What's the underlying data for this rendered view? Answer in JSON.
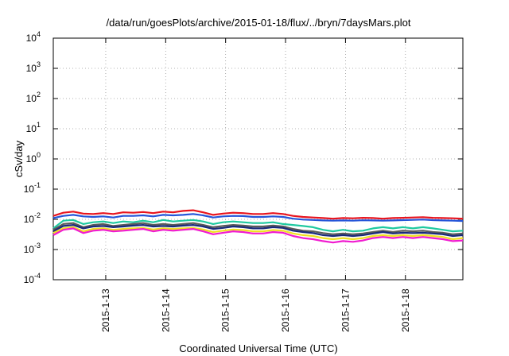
{
  "chart_data": {
    "type": "line",
    "title": "/data/run/goesPlots/archive/2015-01-18/flux/../bryn/7daysMars.plot",
    "xlabel": "Coordinated Universal Time (UTC)",
    "ylabel": "cSv/day",
    "y_scale": "log",
    "ylim": [
      0.0001,
      10000
    ],
    "xlim": [
      "2015-01-12T03:00",
      "2015-01-18T23:00"
    ],
    "x_ticks": [
      "2015-1-13",
      "2015-1-14",
      "2015-1-15",
      "2015-1-16",
      "2015-1-17",
      "2015-1-18"
    ],
    "y_ticks": [
      {
        "base": "10",
        "exp": "-4"
      },
      {
        "base": "10",
        "exp": "-3"
      },
      {
        "base": "10",
        "exp": "-2"
      },
      {
        "base": "10",
        "exp": "-1"
      },
      {
        "base": "10",
        "exp": "0"
      },
      {
        "base": "10",
        "exp": "1"
      },
      {
        "base": "10",
        "exp": "2"
      },
      {
        "base": "10",
        "exp": "3"
      },
      {
        "base": "10",
        "exp": "4"
      }
    ],
    "grid": true,
    "x": [
      "2015-01-12T03:00",
      "2015-01-12T07:00",
      "2015-01-12T11:00",
      "2015-01-12T15:00",
      "2015-01-12T19:00",
      "2015-01-12T23:00",
      "2015-01-13T03:00",
      "2015-01-13T07:00",
      "2015-01-13T11:00",
      "2015-01-13T15:00",
      "2015-01-13T19:00",
      "2015-01-13T23:00",
      "2015-01-14T03:00",
      "2015-01-14T07:00",
      "2015-01-14T11:00",
      "2015-01-14T15:00",
      "2015-01-14T19:00",
      "2015-01-14T23:00",
      "2015-01-15T03:00",
      "2015-01-15T07:00",
      "2015-01-15T11:00",
      "2015-01-15T15:00",
      "2015-01-15T19:00",
      "2015-01-15T23:00",
      "2015-01-16T03:00",
      "2015-01-16T07:00",
      "2015-01-16T11:00",
      "2015-01-16T15:00",
      "2015-01-16T19:00",
      "2015-01-16T23:00",
      "2015-01-17T03:00",
      "2015-01-17T07:00",
      "2015-01-17T11:00",
      "2015-01-17T15:00",
      "2015-01-17T19:00",
      "2015-01-17T23:00",
      "2015-01-18T03:00",
      "2015-01-18T07:00",
      "2015-01-18T11:00",
      "2015-01-18T15:00",
      "2015-01-18T19:00",
      "2015-01-18T23:00"
    ],
    "series": [
      {
        "color": "#e8141e",
        "values": [
          0.013,
          0.0165,
          0.018,
          0.0155,
          0.015,
          0.016,
          0.015,
          0.017,
          0.0165,
          0.0175,
          0.016,
          0.018,
          0.017,
          0.019,
          0.02,
          0.017,
          0.014,
          0.0155,
          0.0165,
          0.016,
          0.015,
          0.015,
          0.016,
          0.015,
          0.013,
          0.012,
          0.0115,
          0.011,
          0.0105,
          0.011,
          0.0108,
          0.0112,
          0.011,
          0.0105,
          0.011,
          0.0112,
          0.0115,
          0.0118,
          0.0112,
          0.011,
          0.0108,
          0.0105
        ]
      },
      {
        "color": "#2455d9",
        "values": [
          0.011,
          0.013,
          0.014,
          0.0125,
          0.012,
          0.0125,
          0.0115,
          0.013,
          0.013,
          0.0135,
          0.0125,
          0.014,
          0.0135,
          0.014,
          0.015,
          0.0135,
          0.0115,
          0.0125,
          0.013,
          0.0128,
          0.012,
          0.012,
          0.0125,
          0.012,
          0.0105,
          0.0098,
          0.0095,
          0.0092,
          0.009,
          0.0092,
          0.009,
          0.0093,
          0.0092,
          0.009,
          0.0092,
          0.0094,
          0.0096,
          0.0098,
          0.0094,
          0.0092,
          0.009,
          0.0088
        ]
      },
      {
        "color": "#1fc9a0",
        "values": [
          0.005,
          0.009,
          0.0095,
          0.007,
          0.008,
          0.0085,
          0.0075,
          0.0085,
          0.008,
          0.009,
          0.008,
          0.0095,
          0.0085,
          0.009,
          0.0095,
          0.0085,
          0.007,
          0.008,
          0.0085,
          0.008,
          0.0075,
          0.0075,
          0.008,
          0.007,
          0.0065,
          0.006,
          0.0055,
          0.0045,
          0.004,
          0.0045,
          0.004,
          0.0042,
          0.005,
          0.0055,
          0.005,
          0.0055,
          0.005,
          0.0055,
          0.005,
          0.0045,
          0.004,
          0.0042
        ]
      },
      {
        "color": "#5a5a5a",
        "values": [
          0.0045,
          0.007,
          0.0075,
          0.0055,
          0.0065,
          0.007,
          0.006,
          0.0065,
          0.007,
          0.0075,
          0.0065,
          0.007,
          0.0065,
          0.007,
          0.0075,
          0.0065,
          0.0055,
          0.006,
          0.0065,
          0.0062,
          0.0058,
          0.0058,
          0.0062,
          0.0058,
          0.0048,
          0.0042,
          0.004,
          0.0035,
          0.0032,
          0.0034,
          0.0032,
          0.0034,
          0.0038,
          0.0042,
          0.0038,
          0.0042,
          0.004,
          0.0042,
          0.0038,
          0.0036,
          0.0032,
          0.0034
        ]
      },
      {
        "color": "#1a2a7a",
        "values": [
          0.004,
          0.006,
          0.0065,
          0.005,
          0.0058,
          0.006,
          0.0055,
          0.0058,
          0.0062,
          0.0065,
          0.0058,
          0.006,
          0.0058,
          0.0062,
          0.0065,
          0.0058,
          0.0048,
          0.0052,
          0.0058,
          0.0055,
          0.005,
          0.005,
          0.0055,
          0.0052,
          0.0042,
          0.0038,
          0.0035,
          0.003,
          0.0028,
          0.003,
          0.0028,
          0.003,
          0.0034,
          0.0038,
          0.0034,
          0.0036,
          0.0035,
          0.0036,
          0.0034,
          0.0032,
          0.0028,
          0.003
        ]
      },
      {
        "color": "#f0e020",
        "values": [
          0.0035,
          0.005,
          0.0055,
          0.004,
          0.0048,
          0.005,
          0.0045,
          0.0048,
          0.005,
          0.0052,
          0.0046,
          0.005,
          0.0048,
          0.005,
          0.0052,
          0.0046,
          0.0038,
          0.0042,
          0.0046,
          0.0044,
          0.004,
          0.004,
          0.0044,
          0.0042,
          0.0034,
          0.003,
          0.0028,
          0.0024,
          0.0022,
          0.0024,
          0.0022,
          0.0024,
          0.0028,
          0.003,
          0.0028,
          0.003,
          0.0028,
          0.003,
          0.0028,
          0.0026,
          0.0022,
          0.0024
        ]
      },
      {
        "color": "#f01bd0",
        "values": [
          0.003,
          0.0045,
          0.005,
          0.0035,
          0.0042,
          0.0045,
          0.004,
          0.0042,
          0.0045,
          0.0048,
          0.004,
          0.0045,
          0.0042,
          0.0045,
          0.0048,
          0.004,
          0.0032,
          0.0036,
          0.004,
          0.0038,
          0.0034,
          0.0034,
          0.0038,
          0.0036,
          0.0028,
          0.0024,
          0.0022,
          0.0019,
          0.0017,
          0.0019,
          0.0018,
          0.002,
          0.0024,
          0.0026,
          0.0024,
          0.0026,
          0.0024,
          0.0026,
          0.0024,
          0.0022,
          0.0019,
          0.002
        ]
      }
    ]
  }
}
